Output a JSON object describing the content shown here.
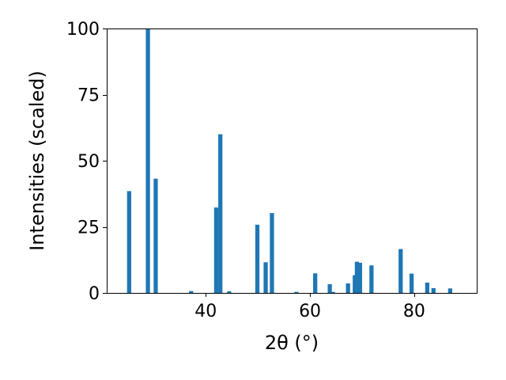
{
  "chart_data": {
    "type": "bar",
    "xlabel": "2θ (°)",
    "ylabel": "Intensities (scaled)",
    "xlim": [
      21.0,
      92.0
    ],
    "ylim": [
      0,
      100
    ],
    "x_ticks": [
      40,
      60,
      80
    ],
    "y_ticks": [
      0,
      25,
      50,
      75,
      100
    ],
    "grid": false,
    "bar_width": 0.8,
    "color": "#1f77b4",
    "bars": [
      {
        "x": 25.3,
        "y": 38.5
      },
      {
        "x": 28.9,
        "y": 100
      },
      {
        "x": 30.4,
        "y": 43.2
      },
      {
        "x": 37.2,
        "y": 0.7
      },
      {
        "x": 42.0,
        "y": 32.3
      },
      {
        "x": 42.8,
        "y": 60.0
      },
      {
        "x": 44.5,
        "y": 0.6
      },
      {
        "x": 49.9,
        "y": 25.8
      },
      {
        "x": 51.5,
        "y": 11.6
      },
      {
        "x": 52.7,
        "y": 30.2
      },
      {
        "x": 57.4,
        "y": 0.4
      },
      {
        "x": 61.0,
        "y": 7.4
      },
      {
        "x": 63.8,
        "y": 3.3
      },
      {
        "x": 64.4,
        "y": 0.4
      },
      {
        "x": 67.3,
        "y": 3.6
      },
      {
        "x": 68.6,
        "y": 6.7
      },
      {
        "x": 69.0,
        "y": 11.8
      },
      {
        "x": 69.6,
        "y": 11.4
      },
      {
        "x": 71.8,
        "y": 10.4
      },
      {
        "x": 77.4,
        "y": 16.6
      },
      {
        "x": 79.5,
        "y": 7.3
      },
      {
        "x": 82.5,
        "y": 3.9
      },
      {
        "x": 83.7,
        "y": 1.8
      },
      {
        "x": 86.9,
        "y": 1.7
      }
    ]
  }
}
